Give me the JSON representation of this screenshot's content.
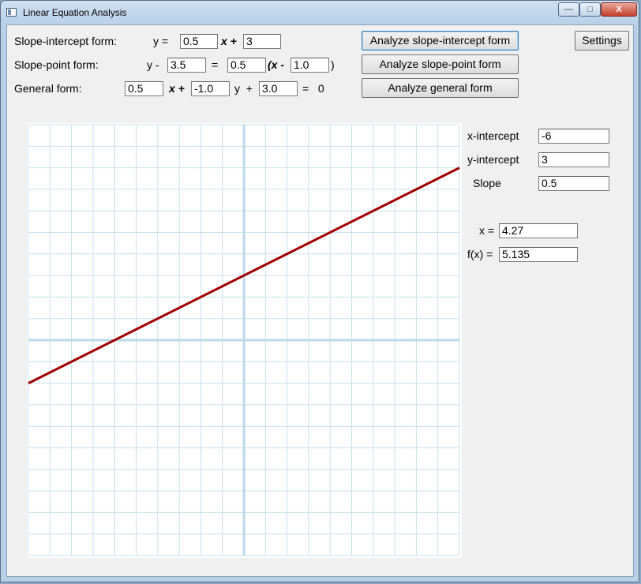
{
  "window": {
    "title": "Linear Equation Analysis",
    "min": "—",
    "max": "□",
    "close": "X"
  },
  "slope_intercept": {
    "label": "Slope-intercept form:",
    "y_eq": "y =",
    "m": "0.5",
    "x_plus": "x +",
    "b": "3"
  },
  "slope_point": {
    "label": "Slope-point form:",
    "y_minus": "y -",
    "y1": "3.5",
    "equals": "=",
    "m": "0.5",
    "open_x_minus": "(x -",
    "x1": "1.0",
    "close": ")"
  },
  "general": {
    "label": "General form:",
    "a": "0.5",
    "x_plus": "x +",
    "b": "-1.0",
    "y_plus": "y  +",
    "c": "3.0",
    "eq_zero": "=   0"
  },
  "buttons": {
    "analyze_si": "Analyze slope-intercept form",
    "analyze_sp": "Analyze slope-point form",
    "analyze_general": "Analyze general form",
    "settings": "Settings"
  },
  "results": {
    "x_intercept_label": "x-intercept",
    "x_intercept": "-6",
    "y_intercept_label": "y-intercept",
    "y_intercept": "3",
    "slope_label": "Slope",
    "slope": "0.5",
    "x_label": "x =",
    "x": "4.27",
    "fx_label": "f(x) =",
    "fx": "5.135"
  },
  "colors": {
    "grid": "#c6e1ec",
    "axis": "#bcd9e6",
    "line": "#a00000"
  },
  "chart_data": {
    "type": "line",
    "xlim": [
      -10,
      10
    ],
    "ylim": [
      -10,
      10
    ],
    "grid": true,
    "series": [
      {
        "x": [
          -10,
          10
        ],
        "y": [
          -2,
          8
        ]
      }
    ]
  }
}
